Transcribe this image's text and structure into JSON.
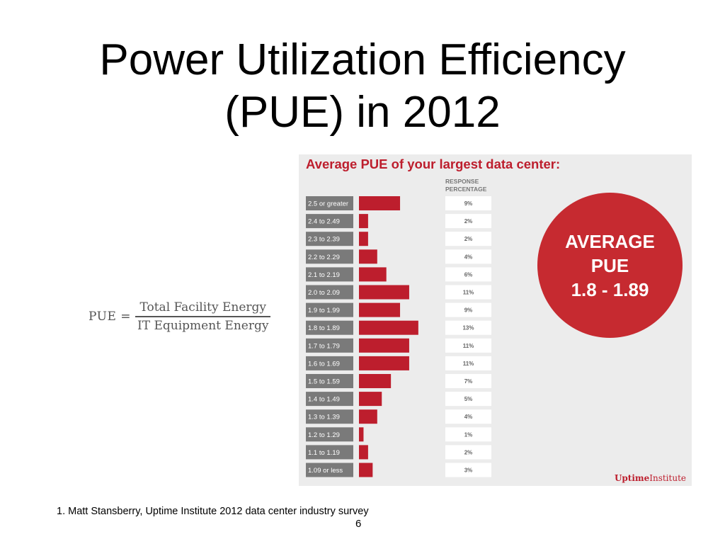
{
  "slide": {
    "title_line1": "Power Utilization Efficiency",
    "title_line2": "(PUE) in 2012",
    "footnote": "1. Matt Stansberry, Uptime Institute 2012 data center industry survey",
    "page_number": "6"
  },
  "formula": {
    "lhs": "PUE =",
    "numerator": "Total Facility Energy",
    "denominator": "IT Equipment Energy"
  },
  "colors": {
    "accent_red": "#bd1e2d",
    "category_box": "#7a7a7a",
    "panel_background": "#ececec"
  },
  "chart_data": {
    "type": "bar",
    "orientation": "horizontal",
    "title": "Average PUE of your largest data center:",
    "value_column_header_line1": "RESPONSE",
    "value_column_header_line2": "PERCENTAGE",
    "categories": [
      "2.5 or greater",
      "2.4 to 2.49",
      "2.3 to 2.39",
      "2.2 to 2.29",
      "2.1 to 2.19",
      "2.0 to 2.09",
      "1.9 to 1.99",
      "1.8 to 1.89",
      "1.7 to 1.79",
      "1.6 to 1.69",
      "1.5 to 1.59",
      "1.4 to 1.49",
      "1.3 to 1.39",
      "1.2 to 1.29",
      "1.1 to 1.19",
      "1.09 or less"
    ],
    "values": [
      9,
      2,
      2,
      4,
      6,
      11,
      9,
      13,
      11,
      11,
      7,
      5,
      4,
      1,
      2,
      3
    ],
    "value_labels": [
      "9%",
      "2%",
      "2%",
      "4%",
      "6%",
      "11%",
      "9%",
      "13%",
      "11%",
      "11%",
      "7%",
      "5%",
      "4%",
      "1%",
      "2%",
      "3%"
    ],
    "grid": false,
    "legend": "none",
    "callout": {
      "line1": "AVERAGE",
      "line2": "PUE",
      "line3": "1.8 - 1.89"
    },
    "source_logo_text_bold": "Uptime",
    "source_logo_text": "Institute"
  }
}
